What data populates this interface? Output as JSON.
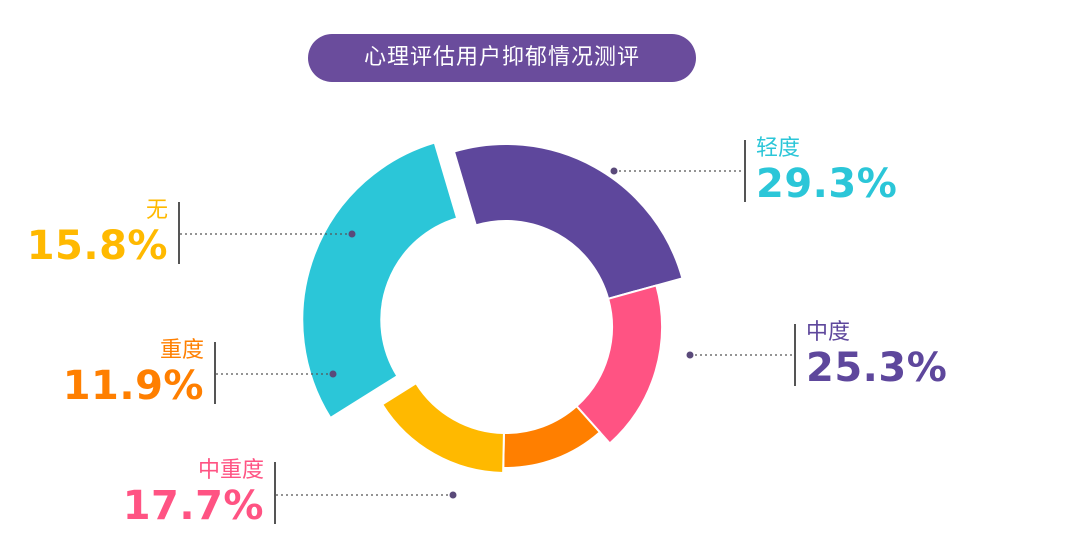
{
  "header": {
    "title": "心理评估用户抑郁情况测评"
  },
  "chart_data": {
    "type": "donut",
    "title": "心理评估用户抑郁情况测评",
    "unit": "%",
    "slices": [
      {
        "name": "轻度",
        "value": 29.3,
        "label": "29.3%",
        "color": "#2bc6d8"
      },
      {
        "name": "中度",
        "value": 25.3,
        "label": "25.3%",
        "color": "#5e479c"
      },
      {
        "name": "中重度",
        "value": 17.7,
        "label": "17.7%",
        "color": "#ff5383"
      },
      {
        "name": "重度",
        "value": 11.9,
        "label": "11.9%",
        "color": "#ff7f00"
      },
      {
        "name": "无",
        "value": 15.8,
        "label": "15.8%",
        "color": "#ffb900"
      }
    ]
  }
}
